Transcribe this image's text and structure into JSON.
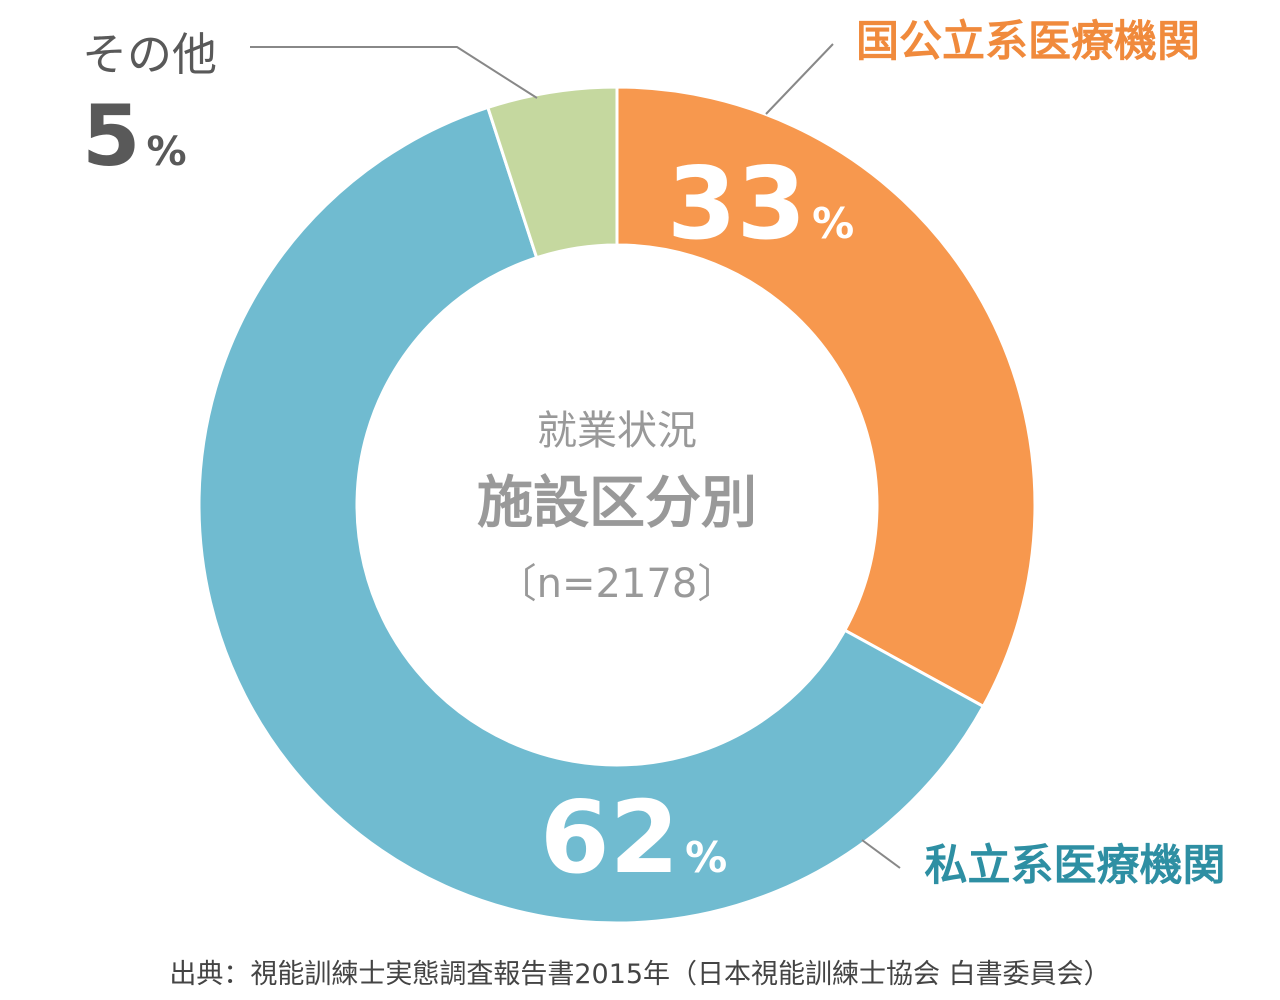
{
  "chart_data": {
    "type": "pie",
    "donut": true,
    "center_label": {
      "line1": "就業状況",
      "line2": "施設区分別",
      "line3": "〔n=2178〕"
    },
    "percent_sign": "%",
    "slices": [
      {
        "label": "国公立系医療機関",
        "value": 33,
        "value_text": "33",
        "color": "#F7984E",
        "label_color": "#F08A3C"
      },
      {
        "label": "私立系医療機関",
        "value": 62,
        "value_text": "62",
        "color": "#70BBD0",
        "label_color": "#2E8FA3"
      },
      {
        "label": "その他",
        "value": 5,
        "value_text": "5",
        "color": "#C5D89F",
        "label_color": "#595959"
      }
    ]
  },
  "source": "出典：視能訓練士実態調査報告書2015年（日本視能訓練士協会 白書委員会）"
}
